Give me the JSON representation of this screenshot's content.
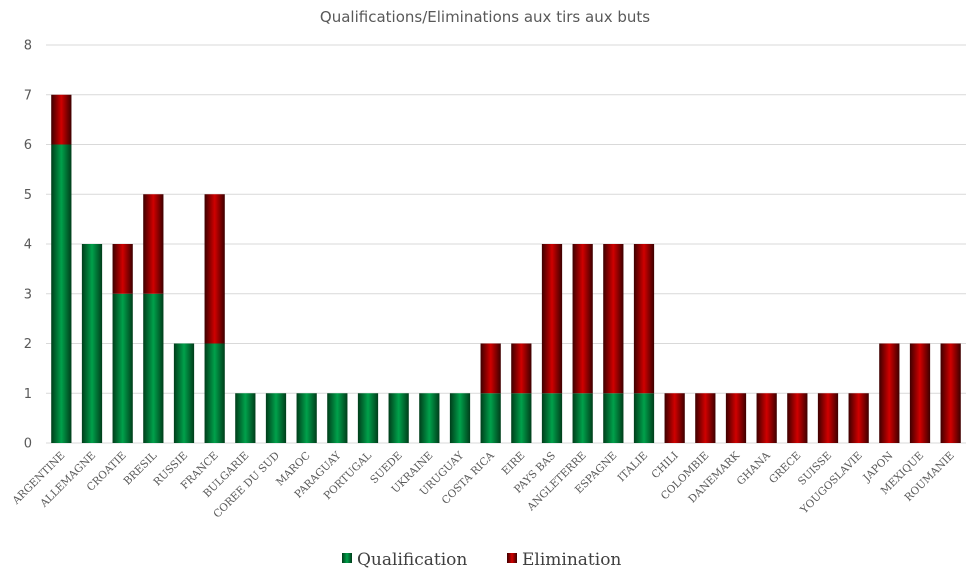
{
  "chart_data": {
    "type": "bar",
    "stacked": true,
    "title": "Qualifications/Eliminations aux tirs aux buts",
    "xlabel": "",
    "ylabel": "",
    "ylim": [
      0,
      8
    ],
    "yticks": [
      0,
      1,
      2,
      3,
      4,
      5,
      6,
      7,
      8
    ],
    "grid": true,
    "legend_position": "bottom",
    "categories": [
      "ARGENTINE",
      "ALLEMAGNE",
      "CROATIE",
      "BRESIL",
      "RUSSIE",
      "FRANCE",
      "BULGARIE",
      "COREE DU SUD",
      "MAROC",
      "PARAGUAY",
      "PORTUGAL",
      "SUEDE",
      "UKRAINE",
      "URUGUAY",
      "COSTA RICA",
      "EIRE",
      "PAYS BAS",
      "ANGLETERRE",
      "ESPAGNE",
      "ITALIE",
      "CHILI",
      "COLOMBIE",
      "DANEMARK",
      "GHANA",
      "GRECE",
      "SUISSE",
      "YOUGOSLAVIE",
      "JAPON",
      "MEXIQUE",
      "ROUMANIE"
    ],
    "series": [
      {
        "name": "Qualification",
        "color": "#00803a",
        "values": [
          6,
          4,
          3,
          3,
          2,
          2,
          1,
          1,
          1,
          1,
          1,
          1,
          1,
          1,
          1,
          1,
          1,
          1,
          1,
          1,
          0,
          0,
          0,
          0,
          0,
          0,
          0,
          0,
          0,
          0
        ]
      },
      {
        "name": "Elimination",
        "color": "#c00000",
        "values": [
          1,
          0,
          1,
          2,
          0,
          3,
          0,
          0,
          0,
          0,
          0,
          0,
          0,
          0,
          1,
          1,
          3,
          3,
          3,
          3,
          1,
          1,
          1,
          1,
          1,
          1,
          1,
          2,
          2,
          2
        ]
      }
    ]
  }
}
